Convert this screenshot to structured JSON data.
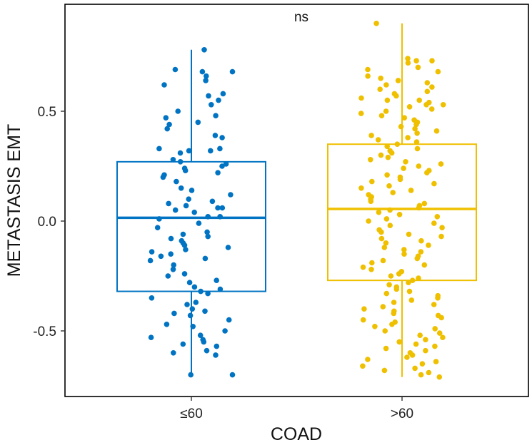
{
  "chart_data": {
    "type": "boxplot",
    "xlabel": "COAD",
    "ylabel": "METASTASIS EMT",
    "categories": [
      "≤60",
      ">60"
    ],
    "ylim": [
      -0.78,
      0.95
    ],
    "yticks": [
      -0.5,
      0.0,
      0.5
    ],
    "ytick_labels": [
      "-0.5",
      "0.0",
      "0.5"
    ],
    "annotation": "ns",
    "grid": false,
    "legend": "none",
    "series": [
      {
        "category": "≤60",
        "color": "#0073C2",
        "box": {
          "q1": -0.32,
          "median": 0.015,
          "q3": 0.27,
          "whisker_low": -0.7,
          "whisker_high": 0.78
        },
        "points": [
          0.78,
          0.69,
          0.68,
          0.68,
          0.66,
          0.64,
          0.62,
          0.58,
          0.57,
          0.55,
          0.53,
          0.5,
          0.48,
          0.47,
          0.45,
          0.44,
          0.42,
          0.39,
          0.38,
          0.33,
          0.33,
          0.32,
          0.32,
          0.31,
          0.28,
          0.27,
          0.26,
          0.25,
          0.24,
          0.23,
          0.22,
          0.21,
          0.2,
          0.18,
          0.15,
          0.14,
          0.12,
          0.1,
          0.09,
          0.08,
          0.07,
          0.06,
          0.06,
          0.05,
          0.04,
          0.02,
          0.02,
          0.01,
          -0.01,
          -0.03,
          -0.05,
          -0.06,
          -0.07,
          -0.08,
          -0.09,
          -0.1,
          -0.11,
          -0.12,
          -0.13,
          -0.14,
          -0.15,
          -0.16,
          -0.17,
          -0.18,
          -0.2,
          -0.22,
          -0.24,
          -0.25,
          -0.27,
          -0.28,
          -0.3,
          -0.31,
          -0.32,
          -0.33,
          -0.35,
          -0.37,
          -0.38,
          -0.4,
          -0.41,
          -0.42,
          -0.43,
          -0.45,
          -0.47,
          -0.48,
          -0.5,
          -0.52,
          -0.53,
          -0.54,
          -0.55,
          -0.56,
          -0.57,
          -0.59,
          -0.6,
          -0.61,
          -0.7,
          -0.7
        ]
      },
      {
        "category": ">60",
        "color": "#EFC000",
        "box": {
          "q1": -0.27,
          "median": 0.055,
          "q3": 0.35,
          "whisker_low": -0.71,
          "whisker_high": 0.9
        },
        "points": [
          0.9,
          0.74,
          0.73,
          0.73,
          0.72,
          0.7,
          0.69,
          0.68,
          0.66,
          0.65,
          0.64,
          0.63,
          0.62,
          0.61,
          0.6,
          0.59,
          0.58,
          0.57,
          0.56,
          0.55,
          0.55,
          0.54,
          0.53,
          0.53,
          0.52,
          0.51,
          0.5,
          0.49,
          0.48,
          0.47,
          0.46,
          0.45,
          0.44,
          0.43,
          0.42,
          0.41,
          0.4,
          0.39,
          0.38,
          0.37,
          0.36,
          0.35,
          0.34,
          0.33,
          0.32,
          0.31,
          0.3,
          0.29,
          0.28,
          0.27,
          0.26,
          0.25,
          0.24,
          0.23,
          0.22,
          0.21,
          0.2,
          0.19,
          0.18,
          0.17,
          0.16,
          0.15,
          0.14,
          0.13,
          0.12,
          0.11,
          0.1,
          0.09,
          0.08,
          0.07,
          0.06,
          0.05,
          0.04,
          0.03,
          0.02,
          0.01,
          0.0,
          -0.01,
          -0.02,
          -0.03,
          -0.04,
          -0.05,
          -0.06,
          -0.07,
          -0.08,
          -0.09,
          -0.1,
          -0.11,
          -0.12,
          -0.13,
          -0.14,
          -0.15,
          -0.16,
          -0.17,
          -0.18,
          -0.19,
          -0.2,
          -0.21,
          -0.22,
          -0.23,
          -0.24,
          -0.25,
          -0.26,
          -0.27,
          -0.28,
          -0.29,
          -0.3,
          -0.31,
          -0.32,
          -0.33,
          -0.34,
          -0.35,
          -0.36,
          -0.37,
          -0.38,
          -0.39,
          -0.4,
          -0.41,
          -0.42,
          -0.43,
          -0.44,
          -0.45,
          -0.46,
          -0.47,
          -0.48,
          -0.49,
          -0.5,
          -0.51,
          -0.52,
          -0.53,
          -0.54,
          -0.55,
          -0.56,
          -0.57,
          -0.58,
          -0.59,
          -0.6,
          -0.61,
          -0.62,
          -0.63,
          -0.64,
          -0.65,
          -0.66,
          -0.67,
          -0.68,
          -0.69,
          -0.7,
          -0.71
        ]
      }
    ]
  }
}
